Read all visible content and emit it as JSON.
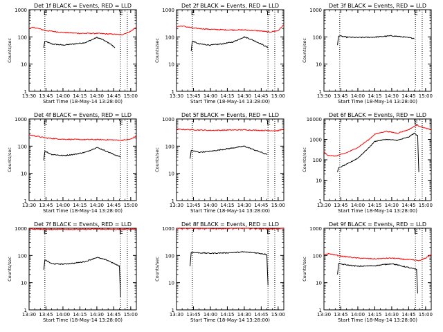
{
  "colors": {
    "events": "#000000",
    "lld": "#ff0000",
    "axes": "#000000",
    "background": "#ffffff"
  },
  "chart_data": [
    {
      "type": "line",
      "title": "Det 1f BLACK = Events, RED = LLD",
      "xlabel": "Start Time (18-May-14 13:28:00)",
      "ylabel": "Counts/sec",
      "xticks": [
        "13:30",
        "13:45",
        "14:00",
        "14:15",
        "14:30",
        "14:45",
        "15:00"
      ],
      "yticks": [
        "1",
        "10",
        "100",
        "1000"
      ],
      "ylim": [
        1,
        1000
      ],
      "yscale": "log",
      "xlim": [
        "13:30",
        "15:05"
      ],
      "markers": [
        {
          "time": "13:44",
          "label": "E"
        },
        {
          "time": "14:51",
          "label": "E"
        }
      ],
      "extra_vlines": [
        "14:57"
      ],
      "series": [
        {
          "name": "Events",
          "color": "#000000",
          "x": [
            "13:43",
            "13:44",
            "13:50",
            "14:00",
            "14:10",
            "14:20",
            "14:30",
            "14:35",
            "14:42",
            "14:46"
          ],
          "y": [
            40,
            70,
            55,
            50,
            55,
            62,
            95,
            80,
            55,
            40
          ]
        },
        {
          "name": "LLD",
          "color": "#ff0000",
          "x": [
            "13:30",
            "13:35",
            "13:45",
            "14:00",
            "14:15",
            "14:30",
            "14:45",
            "14:52",
            "15:00",
            "15:05"
          ],
          "y": [
            210,
            220,
            170,
            145,
            135,
            135,
            125,
            120,
            160,
            230
          ]
        }
      ]
    },
    {
      "type": "line",
      "title": "Det 2f BLACK = Events, RED = LLD",
      "xlabel": "Start Time (18-May-14 13:28:00)",
      "ylabel": "Counts/sec",
      "xticks": [
        "13:30",
        "13:45",
        "14:00",
        "14:15",
        "14:30",
        "14:45",
        "15:00"
      ],
      "yticks": [
        "1",
        "10",
        "100",
        "1000"
      ],
      "ylim": [
        1,
        1000
      ],
      "yscale": "log",
      "xlim": [
        "13:30",
        "15:05"
      ],
      "markers": [
        {
          "time": "13:44",
          "label": "E"
        },
        {
          "time": "14:51",
          "label": "E"
        }
      ],
      "extra_vlines": [
        "14:57"
      ],
      "series": [
        {
          "name": "Events",
          "color": "#000000",
          "x": [
            "13:43",
            "13:44",
            "13:50",
            "14:00",
            "14:10",
            "14:20",
            "14:30",
            "14:35",
            "14:45",
            "14:51"
          ],
          "y": [
            30,
            70,
            55,
            50,
            55,
            65,
            100,
            85,
            55,
            40
          ]
        },
        {
          "name": "LLD",
          "color": "#ff0000",
          "x": [
            "13:30",
            "13:35",
            "13:45",
            "14:00",
            "14:15",
            "14:30",
            "14:45",
            "14:52",
            "15:00",
            "15:05"
          ],
          "y": [
            240,
            250,
            210,
            190,
            180,
            180,
            165,
            150,
            170,
            280
          ]
        }
      ]
    },
    {
      "type": "line",
      "title": "Det 3f BLACK = Events, RED = LLD",
      "xlabel": "Start Time (18-May-14 13:28:00)",
      "ylabel": "Counts/sec",
      "xticks": [
        "13:30",
        "13:45",
        "14:00",
        "14:15",
        "14:30",
        "14:45",
        "15:00"
      ],
      "yticks": [
        "1",
        "10",
        "100",
        "1000"
      ],
      "ylim": [
        1,
        1000
      ],
      "yscale": "log",
      "xlim": [
        "13:30",
        "15:05"
      ],
      "markers": [
        {
          "time": "13:44",
          "label": ""
        },
        {
          "time": "14:51",
          "label": "E"
        }
      ],
      "extra_vlines": [
        "14:57"
      ],
      "series": [
        {
          "name": "Events",
          "color": "#000000",
          "x": [
            "13:42",
            "13:43",
            "13:50",
            "14:00",
            "14:15",
            "14:30",
            "14:40",
            "14:50"
          ],
          "y": [
            50,
            110,
            98,
            95,
            98,
            110,
            100,
            88
          ]
        }
      ]
    },
    {
      "type": "line",
      "title": "Det 4f BLACK = Events, RED = LLD",
      "xlabel": "Start Time (18-May-14 13:28:00)",
      "ylabel": "Counts/sec",
      "xticks": [
        "13:30",
        "13:45",
        "14:00",
        "14:15",
        "14:30",
        "14:45",
        "15:00"
      ],
      "yticks": [
        "1",
        "10",
        "100",
        "1000"
      ],
      "ylim": [
        1,
        1000
      ],
      "yscale": "log",
      "xlim": [
        "13:30",
        "15:05"
      ],
      "markers": [
        {
          "time": "13:44",
          "label": "E"
        },
        {
          "time": "14:51",
          "label": "E"
        }
      ],
      "extra_vlines": [
        "14:57"
      ],
      "series": [
        {
          "name": "Events",
          "color": "#000000",
          "x": [
            "13:43",
            "13:44",
            "13:50",
            "14:00",
            "14:10",
            "14:20",
            "14:30",
            "14:35",
            "14:45",
            "14:51"
          ],
          "y": [
            30,
            65,
            50,
            45,
            50,
            60,
            90,
            75,
            50,
            40
          ]
        },
        {
          "name": "LLD",
          "color": "#ff0000",
          "x": [
            "13:30",
            "13:35",
            "13:45",
            "14:00",
            "14:15",
            "14:30",
            "14:45",
            "14:52",
            "15:00",
            "15:05"
          ],
          "y": [
            260,
            240,
            200,
            180,
            175,
            175,
            170,
            165,
            180,
            240
          ]
        }
      ]
    },
    {
      "type": "line",
      "title": "Det 5f BLACK = Events, RED = LLD",
      "xlabel": "Start Time (18-May-14 13:28:00)",
      "ylabel": "Counts/sec",
      "xticks": [
        "13:30",
        "13:45",
        "14:00",
        "14:15",
        "14:30",
        "14:45",
        "15:00"
      ],
      "yticks": [
        "1",
        "10",
        "100",
        "1000"
      ],
      "ylim": [
        1,
        1000
      ],
      "yscale": "log",
      "xlim": [
        "13:30",
        "15:05"
      ],
      "markers": [
        {
          "time": "13:44",
          "label": ""
        },
        {
          "time": "14:51",
          "label": "E"
        }
      ],
      "extra_vlines": [
        "14:57"
      ],
      "series": [
        {
          "name": "Events",
          "color": "#000000",
          "x": [
            "13:42",
            "13:43",
            "13:50",
            "14:00",
            "14:15",
            "14:30",
            "14:40",
            "14:50"
          ],
          "y": [
            35,
            70,
            60,
            65,
            80,
            100,
            70,
            50
          ]
        },
        {
          "name": "LLD",
          "color": "#ff0000",
          "x": [
            "13:30",
            "13:45",
            "14:00",
            "14:15",
            "14:30",
            "14:45",
            "15:00",
            "15:05"
          ],
          "y": [
            420,
            400,
            380,
            390,
            400,
            380,
            370,
            430
          ]
        }
      ]
    },
    {
      "type": "line",
      "title": "Det 6f BLACK = Events, RED = LLD",
      "xlabel": "Start Time (18-May-14 13:28:00)",
      "ylabel": "Counts/sec",
      "xticks": [
        "13:30",
        "13:45",
        "14:00",
        "14:15",
        "14:30",
        "14:45",
        "15:00"
      ],
      "yticks": [
        "1",
        "10",
        "100",
        "1000",
        "10000"
      ],
      "ylim": [
        1,
        10000
      ],
      "yscale": "log",
      "xlim": [
        "13:30",
        "15:05"
      ],
      "markers": [
        {
          "time": "13:44",
          "label": ""
        },
        {
          "time": "14:51",
          "label": "E"
        }
      ],
      "extra_vlines": [
        "14:57"
      ],
      "series": [
        {
          "name": "Events",
          "color": "#000000",
          "x": [
            "13:42",
            "13:43",
            "13:50",
            "14:00",
            "14:10",
            "14:15",
            "14:25",
            "14:35",
            "14:45",
            "14:50",
            "14:53",
            "14:54"
          ],
          "y": [
            25,
            40,
            60,
            120,
            400,
            800,
            1000,
            900,
            1300,
            2000,
            1500,
            25
          ]
        },
        {
          "name": "LLD",
          "color": "#ff0000",
          "x": [
            "13:30",
            "13:33",
            "13:40",
            "13:50",
            "14:00",
            "14:10",
            "14:15",
            "14:25",
            "14:35",
            "14:45",
            "14:52",
            "15:00",
            "15:05"
          ],
          "y": [
            250,
            170,
            150,
            220,
            400,
            1000,
            1800,
            2500,
            2000,
            3000,
            5000,
            3500,
            3000
          ]
        }
      ]
    },
    {
      "type": "line",
      "title": "Det 7f BLACK = Events, RED = LLD",
      "xlabel": "Start Time (18-May-14 13:28:00)",
      "ylabel": "Counts/sec",
      "xticks": [
        "13:30",
        "13:45",
        "14:00",
        "14:15",
        "14:30",
        "14:45",
        "15:00"
      ],
      "yticks": [
        "1",
        "10",
        "100",
        "1000"
      ],
      "ylim": [
        1,
        1000
      ],
      "yscale": "log",
      "xlim": [
        "13:30",
        "15:05"
      ],
      "markers": [
        {
          "time": "13:44",
          "label": "E"
        },
        {
          "time": "14:51",
          "label": "E"
        }
      ],
      "extra_vlines": [
        "14:57"
      ],
      "series": [
        {
          "name": "Events",
          "color": "#000000",
          "x": [
            "13:43",
            "13:44",
            "13:50",
            "14:00",
            "14:10",
            "14:20",
            "14:30",
            "14:40",
            "14:50",
            "14:51"
          ],
          "y": [
            30,
            70,
            50,
            48,
            52,
            60,
            85,
            65,
            40,
            3
          ]
        },
        {
          "name": "LLD",
          "color": "#ff0000",
          "x": [
            "13:30",
            "13:45",
            "14:00",
            "14:15",
            "14:30",
            "14:45",
            "15:00",
            "15:05"
          ],
          "y": [
            950,
            900,
            920,
            900,
            930,
            900,
            920,
            950
          ]
        }
      ]
    },
    {
      "type": "line",
      "title": "Det 8f BLACK = Events, RED = LLD",
      "xlabel": "Start Time (18-May-14 13:28:00)",
      "ylabel": "Counts/sec",
      "xticks": [
        "13:30",
        "13:45",
        "14:00",
        "14:15",
        "14:30",
        "14:45",
        "15:00"
      ],
      "yticks": [
        "1",
        "10",
        "100",
        "1000"
      ],
      "ylim": [
        1,
        1000
      ],
      "yscale": "log",
      "xlim": [
        "13:30",
        "15:05"
      ],
      "markers": [
        {
          "time": "13:44",
          "label": ""
        },
        {
          "time": "14:51",
          "label": "E"
        }
      ],
      "extra_vlines": [
        "14:57"
      ],
      "series": [
        {
          "name": "Events",
          "color": "#000000",
          "x": [
            "13:42",
            "13:43",
            "13:50",
            "14:00",
            "14:15",
            "14:30",
            "14:40",
            "14:50",
            "14:51"
          ],
          "y": [
            40,
            130,
            125,
            120,
            125,
            135,
            125,
            110,
            8
          ]
        },
        {
          "name": "LLD",
          "color": "#ff0000",
          "x": [
            "13:30",
            "13:45",
            "14:00",
            "14:15",
            "14:30",
            "14:45",
            "15:00",
            "15:05"
          ],
          "y": [
            1000,
            980,
            970,
            980,
            990,
            960,
            950,
            1000
          ]
        }
      ]
    },
    {
      "type": "line",
      "title": "Det 9f BLACK = Events, RED = LLD",
      "xlabel": "Start Time (18-May-14 13:28:00)",
      "ylabel": "Counts/sec",
      "xticks": [
        "13:30",
        "13:45",
        "14:00",
        "14:15",
        "14:30",
        "14:45",
        "15:00"
      ],
      "yticks": [
        "1",
        "10",
        "100",
        "1000"
      ],
      "ylim": [
        1,
        1000
      ],
      "yscale": "log",
      "xlim": [
        "13:30",
        "15:05"
      ],
      "markers": [
        {
          "time": "13:44",
          "label": ""
        },
        {
          "time": "14:51",
          "label": "E"
        }
      ],
      "extra_vlines": [
        "14:57"
      ],
      "series": [
        {
          "name": "Events",
          "color": "#000000",
          "x": [
            "13:42",
            "13:43",
            "13:50",
            "14:00",
            "14:15",
            "14:30",
            "14:40",
            "14:50",
            "14:52",
            "14:53"
          ],
          "y": [
            20,
            50,
            45,
            40,
            42,
            50,
            40,
            32,
            30,
            4
          ]
        },
        {
          "name": "LLD",
          "color": "#ff0000",
          "x": [
            "13:30",
            "13:35",
            "13:45",
            "14:00",
            "14:15",
            "14:30",
            "14:45",
            "14:55",
            "15:00",
            "15:05"
          ],
          "y": [
            110,
            115,
            95,
            80,
            75,
            80,
            70,
            65,
            80,
            110
          ]
        }
      ]
    }
  ]
}
